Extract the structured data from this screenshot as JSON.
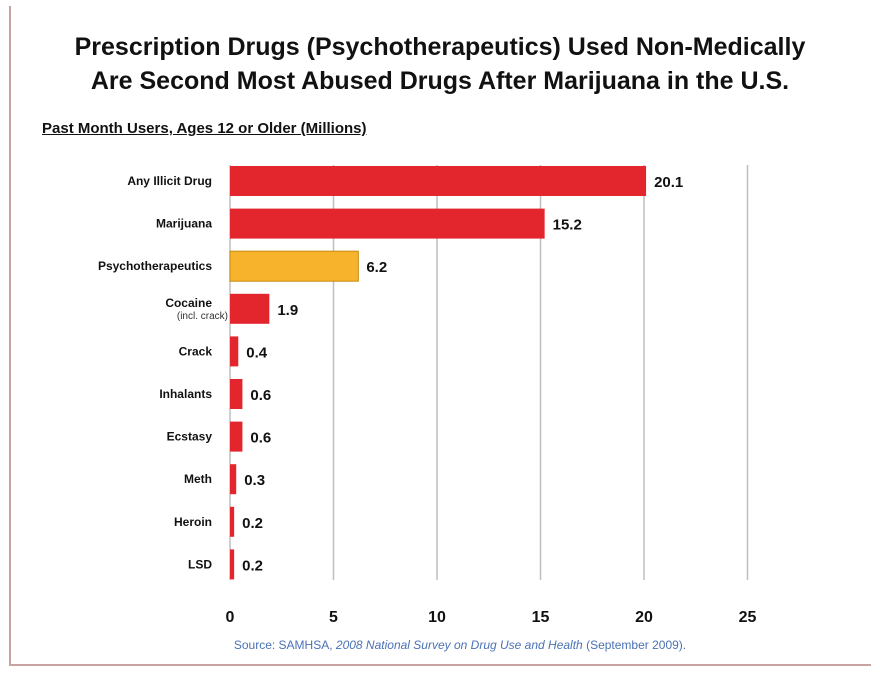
{
  "chart_data": {
    "type": "bar",
    "orientation": "horizontal",
    "title_lines": [
      "Prescription Drugs (Psychotherapeutics) Used Non-Medically",
      "Are Second Most Abused Drugs After Marijuana in the U.S."
    ],
    "subtitle": "Past Month Users, Ages 12 or Older (Millions)",
    "categories": [
      {
        "label": "Any Illicit Drug",
        "sublabel": ""
      },
      {
        "label": "Marijuana",
        "sublabel": ""
      },
      {
        "label": "Psychotherapeutics",
        "sublabel": ""
      },
      {
        "label": "Cocaine",
        "sublabel": "(incl. crack)"
      },
      {
        "label": "Crack",
        "sublabel": ""
      },
      {
        "label": "Inhalants",
        "sublabel": ""
      },
      {
        "label": "Ecstasy",
        "sublabel": ""
      },
      {
        "label": "Meth",
        "sublabel": ""
      },
      {
        "label": "Heroin",
        "sublabel": ""
      },
      {
        "label": "LSD",
        "sublabel": ""
      }
    ],
    "values": [
      20.1,
      15.2,
      6.2,
      1.9,
      0.4,
      0.6,
      0.6,
      0.3,
      0.2,
      0.2
    ],
    "value_labels": [
      "20.1",
      "15.2",
      "6.2",
      "1.9",
      "0.4",
      "0.6",
      "0.6",
      "0.3",
      "0.2",
      "0.2"
    ],
    "bar_colors": [
      "#e3262e",
      "#e3262e",
      "#f7b32b",
      "#e3262e",
      "#e3262e",
      "#e3262e",
      "#e3262e",
      "#e3262e",
      "#e3262e",
      "#e3262e"
    ],
    "xlim": [
      0,
      25
    ],
    "xticks": [
      0,
      5,
      10,
      15,
      20,
      25
    ],
    "grid": "vertical"
  },
  "source": {
    "prefix": "Source:  SAMHSA, ",
    "italic": "2008 National Survey on Drug Use and Health",
    "suffix": " (September 2009)."
  },
  "colors": {
    "bar": "#e3262e",
    "highlight_bar": "#f7b32b",
    "grid": "#bfbfbf",
    "source_text": "#4a72b5"
  }
}
